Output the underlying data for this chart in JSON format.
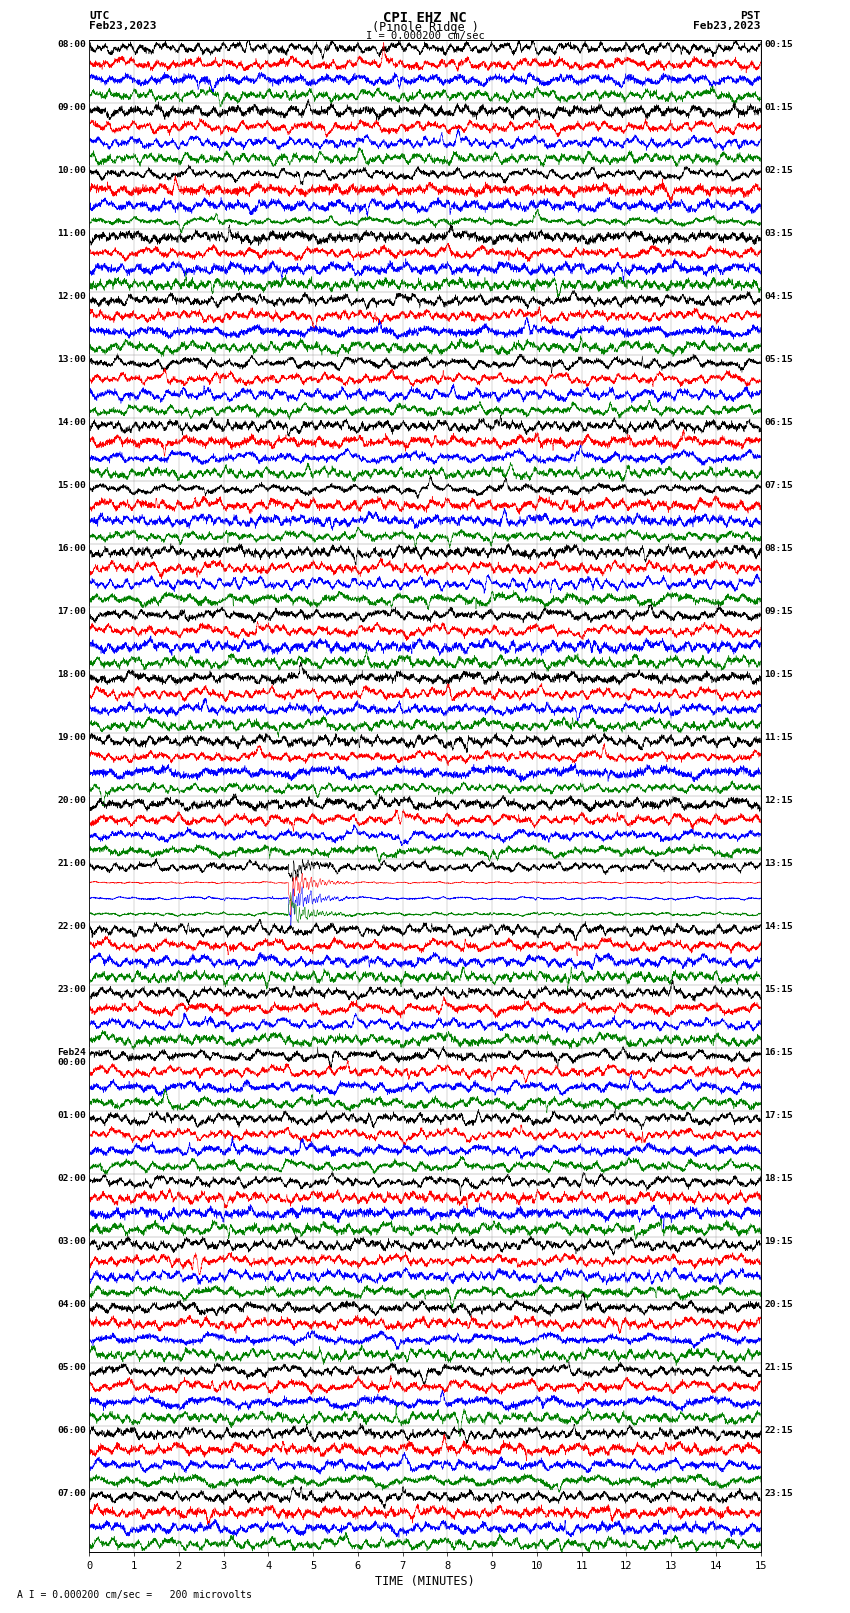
{
  "title_line1": "CPI EHZ NC",
  "title_line2": "(Pinole Ridge )",
  "scale_label": "I = 0.000200 cm/sec",
  "footer_label": "A I = 0.000200 cm/sec =   200 microvolts",
  "utc_label": "UTC",
  "utc_date": "Feb23,2023",
  "pst_label": "PST",
  "pst_date": "Feb23,2023",
  "xlabel": "TIME (MINUTES)",
  "left_times": [
    "08:00",
    "09:00",
    "10:00",
    "11:00",
    "12:00",
    "13:00",
    "14:00",
    "15:00",
    "16:00",
    "17:00",
    "18:00",
    "19:00",
    "20:00",
    "21:00",
    "22:00",
    "23:00",
    "Feb24\n00:00",
    "01:00",
    "02:00",
    "03:00",
    "04:00",
    "05:00",
    "06:00",
    "07:00"
  ],
  "right_times": [
    "00:15",
    "01:15",
    "02:15",
    "03:15",
    "04:15",
    "05:15",
    "06:15",
    "07:15",
    "08:15",
    "09:15",
    "10:15",
    "11:15",
    "12:15",
    "13:15",
    "14:15",
    "15:15",
    "16:15",
    "17:15",
    "18:15",
    "19:15",
    "20:15",
    "21:15",
    "22:15",
    "23:15"
  ],
  "num_rows": 24,
  "traces_per_row": 4,
  "trace_colors": [
    "black",
    "red",
    "blue",
    "green"
  ],
  "background_color": "white",
  "x_min": 0,
  "x_max": 15,
  "x_ticks": [
    0,
    1,
    2,
    3,
    4,
    5,
    6,
    7,
    8,
    9,
    10,
    11,
    12,
    13,
    14,
    15
  ],
  "earthquake_row": 13,
  "earthquake_minute": 4.5,
  "seed": 12345
}
